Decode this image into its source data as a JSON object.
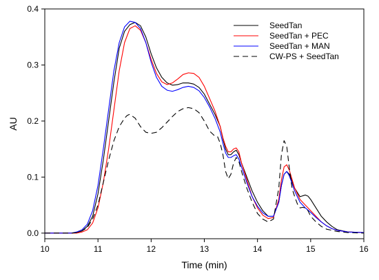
{
  "chart_data": {
    "type": "line",
    "xlabel": "Time (min)",
    "ylabel": "AU",
    "xlim": [
      10,
      16
    ],
    "ylim": [
      -0.01,
      0.4
    ],
    "xticks": [
      10,
      11,
      12,
      13,
      14,
      15,
      16
    ],
    "yticks": [
      0.0,
      0.1,
      0.2,
      0.3,
      0.4
    ],
    "ytick_labels": [
      "0.0",
      "0.1",
      "0.2",
      "0.3",
      "0.4"
    ],
    "grid": false,
    "legend_position": "top-right",
    "series": [
      {
        "name": "SeedTan",
        "color": "#000000",
        "dash": "solid",
        "points": [
          [
            10.0,
            0.0
          ],
          [
            10.5,
            0.0
          ],
          [
            10.6,
            0.001
          ],
          [
            10.7,
            0.004
          ],
          [
            10.8,
            0.012
          ],
          [
            10.9,
            0.03
          ],
          [
            11.0,
            0.07
          ],
          [
            11.1,
            0.13
          ],
          [
            11.2,
            0.2
          ],
          [
            11.3,
            0.27
          ],
          [
            11.4,
            0.33
          ],
          [
            11.5,
            0.36
          ],
          [
            11.6,
            0.372
          ],
          [
            11.7,
            0.376
          ],
          [
            11.8,
            0.37
          ],
          [
            11.9,
            0.35
          ],
          [
            12.0,
            0.32
          ],
          [
            12.1,
            0.295
          ],
          [
            12.2,
            0.278
          ],
          [
            12.3,
            0.268
          ],
          [
            12.4,
            0.264
          ],
          [
            12.5,
            0.265
          ],
          [
            12.6,
            0.268
          ],
          [
            12.7,
            0.268
          ],
          [
            12.8,
            0.266
          ],
          [
            12.9,
            0.26
          ],
          [
            13.0,
            0.248
          ],
          [
            13.1,
            0.23
          ],
          [
            13.2,
            0.212
          ],
          [
            13.3,
            0.19
          ],
          [
            13.35,
            0.168
          ],
          [
            13.4,
            0.15
          ],
          [
            13.45,
            0.14
          ],
          [
            13.5,
            0.14
          ],
          [
            13.55,
            0.145
          ],
          [
            13.6,
            0.148
          ],
          [
            13.65,
            0.14
          ],
          [
            13.7,
            0.125
          ],
          [
            13.8,
            0.1
          ],
          [
            13.9,
            0.075
          ],
          [
            14.0,
            0.055
          ],
          [
            14.1,
            0.04
          ],
          [
            14.2,
            0.03
          ],
          [
            14.3,
            0.03
          ],
          [
            14.4,
            0.055
          ],
          [
            14.45,
            0.085
          ],
          [
            14.5,
            0.105
          ],
          [
            14.55,
            0.11
          ],
          [
            14.6,
            0.105
          ],
          [
            14.7,
            0.08
          ],
          [
            14.8,
            0.065
          ],
          [
            14.9,
            0.068
          ],
          [
            14.95,
            0.066
          ],
          [
            15.0,
            0.06
          ],
          [
            15.1,
            0.045
          ],
          [
            15.2,
            0.03
          ],
          [
            15.3,
            0.02
          ],
          [
            15.4,
            0.012
          ],
          [
            15.5,
            0.006
          ],
          [
            15.7,
            0.002
          ],
          [
            16.0,
            0.001
          ]
        ]
      },
      {
        "name": "SeedTan + PEC",
        "color": "#ff0000",
        "dash": "solid",
        "points": [
          [
            10.0,
            0.0
          ],
          [
            10.5,
            0.0
          ],
          [
            10.6,
            0.0
          ],
          [
            10.7,
            0.002
          ],
          [
            10.8,
            0.006
          ],
          [
            10.9,
            0.018
          ],
          [
            11.0,
            0.045
          ],
          [
            11.1,
            0.09
          ],
          [
            11.2,
            0.15
          ],
          [
            11.3,
            0.22
          ],
          [
            11.4,
            0.29
          ],
          [
            11.5,
            0.34
          ],
          [
            11.6,
            0.365
          ],
          [
            11.7,
            0.37
          ],
          [
            11.8,
            0.362
          ],
          [
            11.9,
            0.34
          ],
          [
            12.0,
            0.31
          ],
          [
            12.1,
            0.285
          ],
          [
            12.2,
            0.27
          ],
          [
            12.3,
            0.265
          ],
          [
            12.4,
            0.268
          ],
          [
            12.5,
            0.275
          ],
          [
            12.6,
            0.283
          ],
          [
            12.7,
            0.286
          ],
          [
            12.8,
            0.285
          ],
          [
            12.9,
            0.278
          ],
          [
            13.0,
            0.262
          ],
          [
            13.1,
            0.24
          ],
          [
            13.2,
            0.218
          ],
          [
            13.3,
            0.19
          ],
          [
            13.35,
            0.17
          ],
          [
            13.4,
            0.155
          ],
          [
            13.45,
            0.145
          ],
          [
            13.5,
            0.145
          ],
          [
            13.55,
            0.15
          ],
          [
            13.6,
            0.152
          ],
          [
            13.65,
            0.145
          ],
          [
            13.7,
            0.125
          ],
          [
            13.8,
            0.095
          ],
          [
            13.9,
            0.065
          ],
          [
            14.0,
            0.045
          ],
          [
            14.1,
            0.032
          ],
          [
            14.2,
            0.026
          ],
          [
            14.3,
            0.028
          ],
          [
            14.4,
            0.06
          ],
          [
            14.45,
            0.095
          ],
          [
            14.5,
            0.118
          ],
          [
            14.55,
            0.122
          ],
          [
            14.6,
            0.112
          ],
          [
            14.7,
            0.08
          ],
          [
            14.8,
            0.06
          ],
          [
            14.9,
            0.05
          ],
          [
            15.0,
            0.04
          ],
          [
            15.1,
            0.03
          ],
          [
            15.2,
            0.02
          ],
          [
            15.3,
            0.013
          ],
          [
            15.4,
            0.008
          ],
          [
            15.5,
            0.005
          ],
          [
            15.7,
            0.002
          ],
          [
            16.0,
            0.001
          ]
        ]
      },
      {
        "name": "SeedTan + MAN",
        "color": "#0000ff",
        "dash": "solid",
        "points": [
          [
            10.0,
            0.0
          ],
          [
            10.5,
            0.0
          ],
          [
            10.6,
            0.002
          ],
          [
            10.7,
            0.006
          ],
          [
            10.8,
            0.016
          ],
          [
            10.9,
            0.04
          ],
          [
            11.0,
            0.085
          ],
          [
            11.1,
            0.15
          ],
          [
            11.2,
            0.22
          ],
          [
            11.3,
            0.29
          ],
          [
            11.4,
            0.34
          ],
          [
            11.5,
            0.368
          ],
          [
            11.6,
            0.378
          ],
          [
            11.7,
            0.376
          ],
          [
            11.8,
            0.365
          ],
          [
            11.9,
            0.34
          ],
          [
            12.0,
            0.305
          ],
          [
            12.1,
            0.278
          ],
          [
            12.2,
            0.262
          ],
          [
            12.3,
            0.255
          ],
          [
            12.4,
            0.253
          ],
          [
            12.5,
            0.256
          ],
          [
            12.6,
            0.26
          ],
          [
            12.7,
            0.262
          ],
          [
            12.8,
            0.26
          ],
          [
            12.9,
            0.254
          ],
          [
            13.0,
            0.242
          ],
          [
            13.1,
            0.225
          ],
          [
            13.2,
            0.205
          ],
          [
            13.3,
            0.18
          ],
          [
            13.35,
            0.16
          ],
          [
            13.4,
            0.143
          ],
          [
            13.45,
            0.135
          ],
          [
            13.5,
            0.135
          ],
          [
            13.55,
            0.138
          ],
          [
            13.6,
            0.14
          ],
          [
            13.65,
            0.132
          ],
          [
            13.7,
            0.118
          ],
          [
            13.8,
            0.09
          ],
          [
            13.9,
            0.065
          ],
          [
            14.0,
            0.048
          ],
          [
            14.1,
            0.036
          ],
          [
            14.2,
            0.03
          ],
          [
            14.3,
            0.03
          ],
          [
            14.4,
            0.055
          ],
          [
            14.45,
            0.085
          ],
          [
            14.5,
            0.105
          ],
          [
            14.55,
            0.11
          ],
          [
            14.6,
            0.102
          ],
          [
            14.7,
            0.075
          ],
          [
            14.8,
            0.055
          ],
          [
            14.9,
            0.045
          ],
          [
            15.0,
            0.037
          ],
          [
            15.1,
            0.028
          ],
          [
            15.2,
            0.02
          ],
          [
            15.3,
            0.013
          ],
          [
            15.4,
            0.008
          ],
          [
            15.5,
            0.005
          ],
          [
            15.7,
            0.002
          ],
          [
            16.0,
            0.001
          ]
        ]
      },
      {
        "name": "CW-PS + SeedTan",
        "color": "#000000",
        "dash": "dashed",
        "points": [
          [
            10.0,
            0.0
          ],
          [
            10.5,
            0.0
          ],
          [
            10.6,
            0.001
          ],
          [
            10.7,
            0.004
          ],
          [
            10.8,
            0.01
          ],
          [
            10.9,
            0.025
          ],
          [
            11.0,
            0.05
          ],
          [
            11.1,
            0.09
          ],
          [
            11.2,
            0.13
          ],
          [
            11.3,
            0.165
          ],
          [
            11.4,
            0.19
          ],
          [
            11.5,
            0.205
          ],
          [
            11.55,
            0.21
          ],
          [
            11.6,
            0.212
          ],
          [
            11.7,
            0.205
          ],
          [
            11.8,
            0.19
          ],
          [
            11.9,
            0.18
          ],
          [
            12.0,
            0.178
          ],
          [
            12.1,
            0.18
          ],
          [
            12.2,
            0.188
          ],
          [
            12.3,
            0.198
          ],
          [
            12.4,
            0.208
          ],
          [
            12.5,
            0.217
          ],
          [
            12.6,
            0.222
          ],
          [
            12.7,
            0.224
          ],
          [
            12.8,
            0.222
          ],
          [
            12.9,
            0.215
          ],
          [
            13.0,
            0.2
          ],
          [
            13.1,
            0.182
          ],
          [
            13.2,
            0.173
          ],
          [
            13.25,
            0.172
          ],
          [
            13.3,
            0.16
          ],
          [
            13.35,
            0.14
          ],
          [
            13.4,
            0.11
          ],
          [
            13.45,
            0.097
          ],
          [
            13.5,
            0.105
          ],
          [
            13.55,
            0.125
          ],
          [
            13.6,
            0.135
          ],
          [
            13.65,
            0.128
          ],
          [
            13.7,
            0.11
          ],
          [
            13.8,
            0.08
          ],
          [
            13.9,
            0.055
          ],
          [
            14.0,
            0.035
          ],
          [
            14.1,
            0.025
          ],
          [
            14.2,
            0.02
          ],
          [
            14.3,
            0.025
          ],
          [
            14.4,
            0.08
          ],
          [
            14.45,
            0.14
          ],
          [
            14.5,
            0.165
          ],
          [
            14.55,
            0.155
          ],
          [
            14.6,
            0.115
          ],
          [
            14.65,
            0.08
          ],
          [
            14.7,
            0.065
          ],
          [
            14.75,
            0.052
          ],
          [
            14.8,
            0.045
          ],
          [
            14.85,
            0.046
          ],
          [
            14.9,
            0.045
          ],
          [
            14.95,
            0.04
          ],
          [
            15.0,
            0.03
          ],
          [
            15.1,
            0.02
          ],
          [
            15.2,
            0.012
          ],
          [
            15.3,
            0.007
          ],
          [
            15.5,
            0.003
          ],
          [
            15.7,
            0.001
          ],
          [
            16.0,
            0.0
          ]
        ]
      }
    ]
  }
}
